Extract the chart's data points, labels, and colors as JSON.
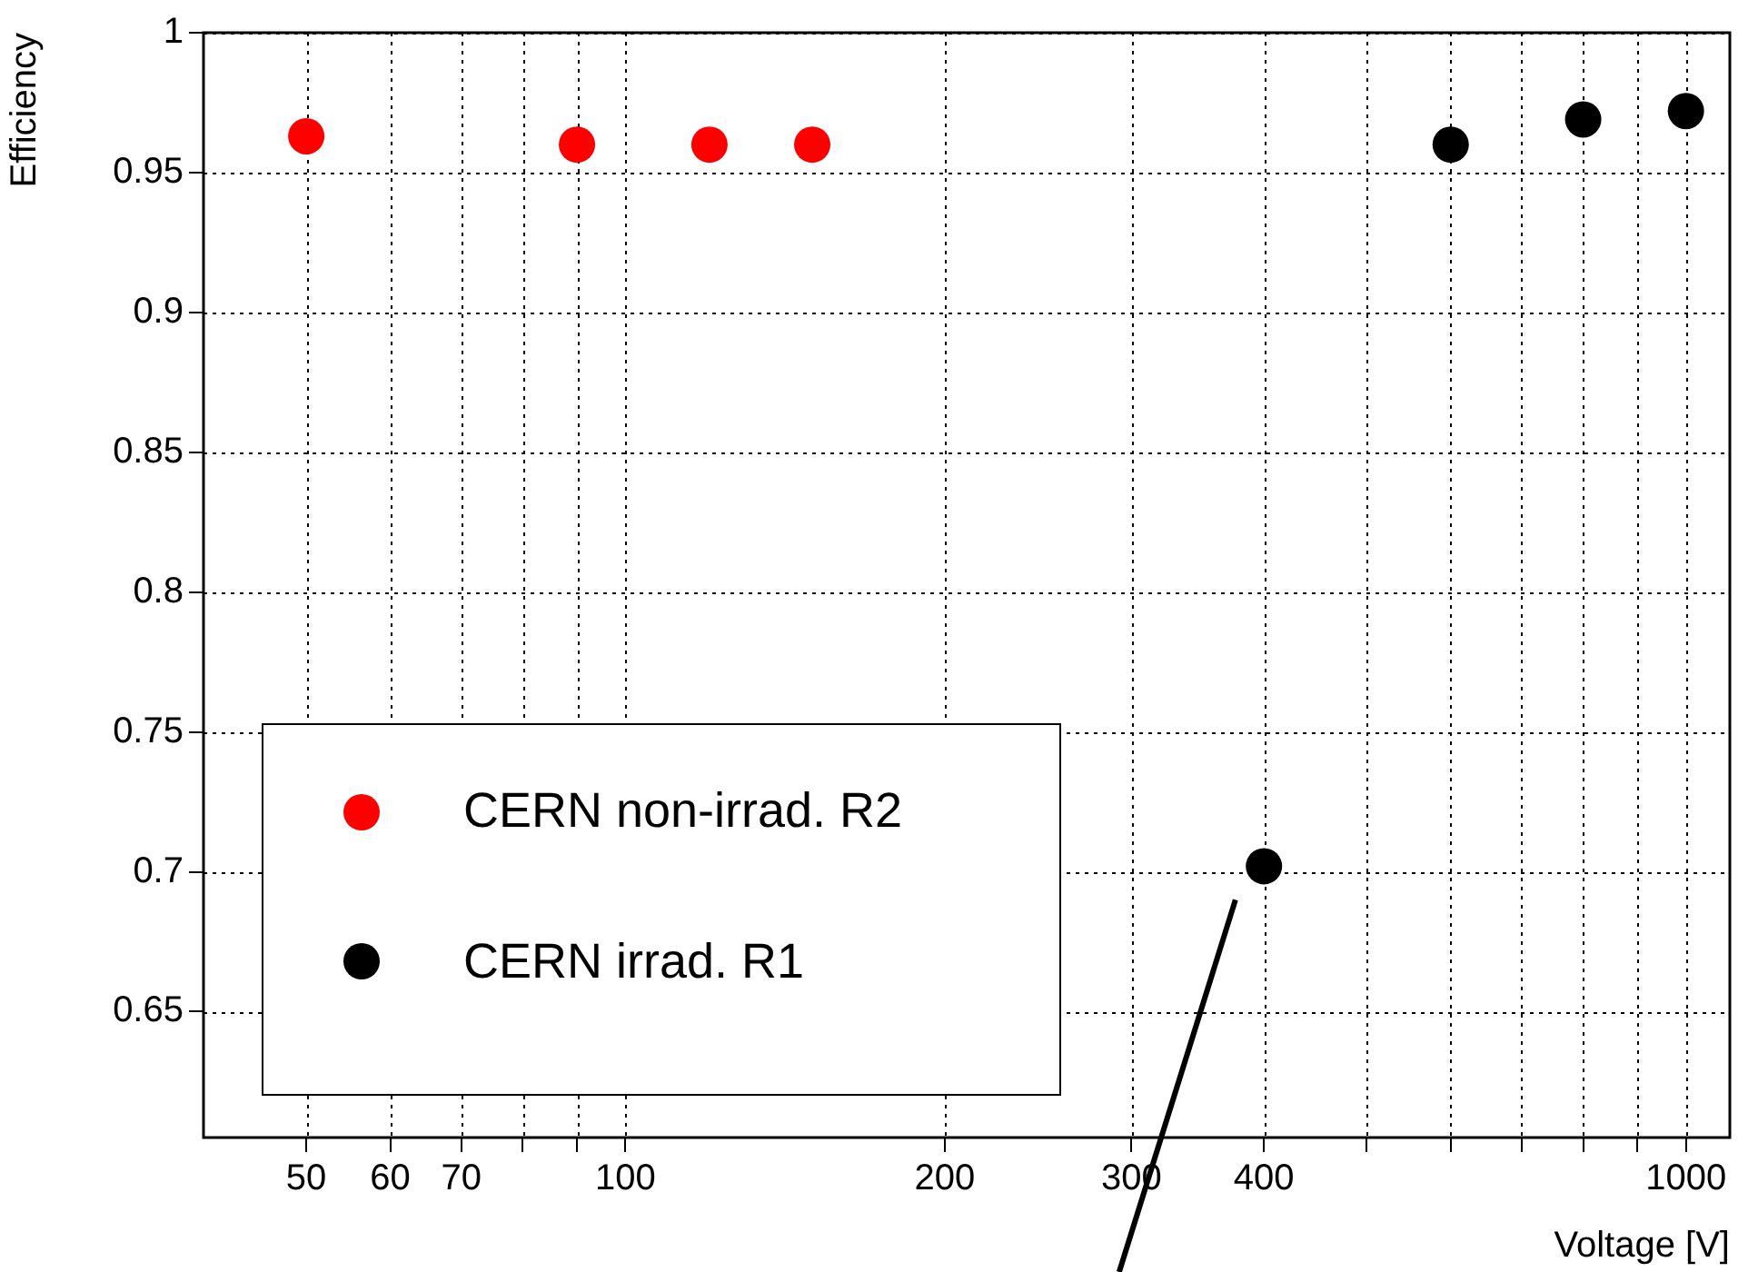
{
  "chart_data": {
    "type": "scatter",
    "xlabel": "Voltage [V]",
    "ylabel": "Efficiency",
    "log": "x",
    "grid": true,
    "legend": "bottom left",
    "marker": "circle",
    "xlim": [
      40,
      1100
    ],
    "ylim": [
      0.605,
      1
    ],
    "xticks": [
      50,
      60,
      70,
      {
        "value": 80,
        "label": null
      },
      {
        "value": 90,
        "label": null
      },
      100,
      200,
      300,
      400,
      {
        "value": 500,
        "label": null
      },
      {
        "value": 600,
        "label": null
      },
      {
        "value": 700,
        "label": null
      },
      {
        "value": 800,
        "label": null
      },
      {
        "value": 900,
        "label": null
      },
      1000
    ],
    "yticks": [
      0.65,
      0.7,
      0.75,
      0.8,
      0.85,
      0.9,
      0.95,
      1
    ],
    "series": [
      {
        "name": "CERN non-irrad. R2",
        "color": "#ff0000",
        "x": [
          50,
          90,
          120,
          150
        ],
        "values": [
          0.963,
          0.96,
          0.96,
          0.96
        ]
      },
      {
        "name": "CERN irrad. R1",
        "color": "#000000",
        "x": [
          400,
          600,
          800,
          1000
        ],
        "values": [
          0.702,
          0.96,
          0.969,
          0.972
        ]
      },
      {
        "type": "line",
        "marker": "none",
        "color": "#000000",
        "x": [
          376,
          320
        ],
        "values": [
          0.69,
          0.605
        ]
      }
    ]
  }
}
